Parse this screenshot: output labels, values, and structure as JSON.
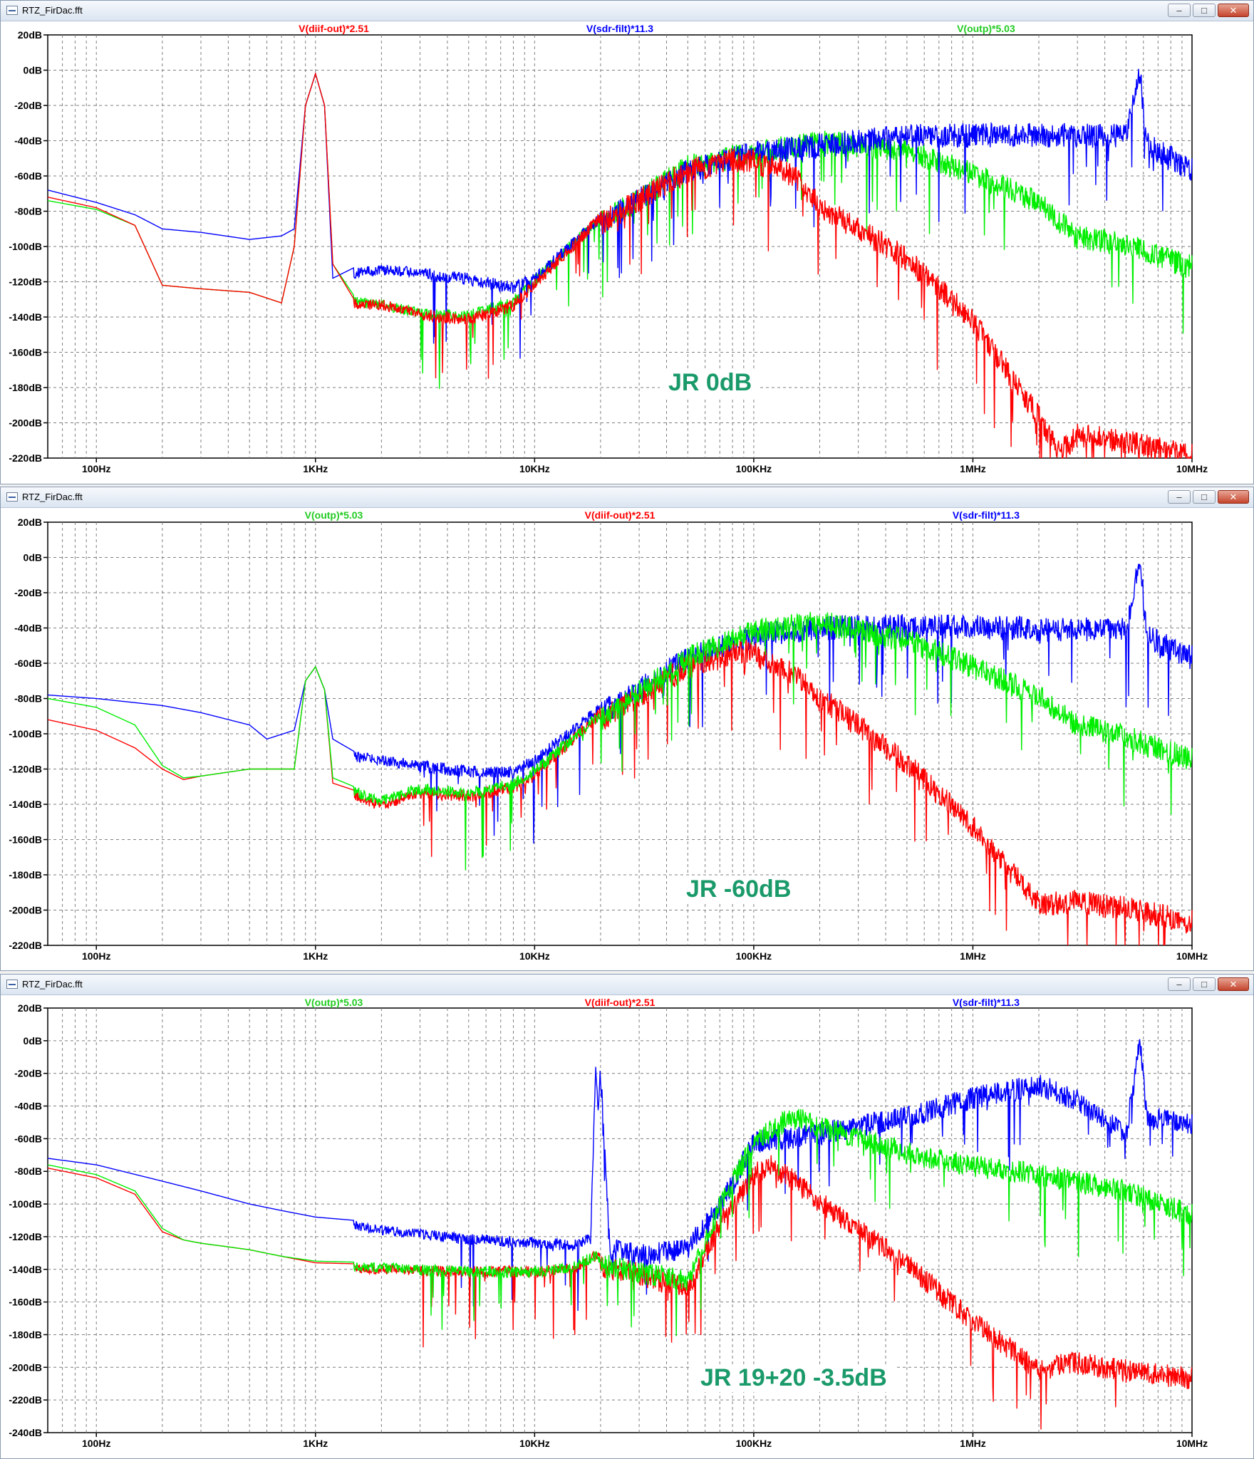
{
  "window_title": "RTZ_FirDac.fft",
  "window_buttons": {
    "minimize": "–",
    "maximize": "□",
    "close": "✕"
  },
  "panels": [
    {
      "title": "RTZ_FirDac.fft",
      "annotation": "JR 0dB",
      "legend_order": [
        "V(diif-out)*2.51",
        "V(sdr-filt)*11.3",
        "V(outp)*5.03"
      ]
    },
    {
      "title": "RTZ_FirDac.fft",
      "annotation": "JR -60dB",
      "legend_order": [
        "V(outp)*5.03",
        "V(diif-out)*2.51",
        "V(sdr-filt)*11.3"
      ]
    },
    {
      "title": "RTZ_FirDac.fft",
      "annotation": "JR 19+20 -3.5dB",
      "legend_order": [
        "V(outp)*5.03",
        "V(diif-out)*2.51",
        "V(sdr-filt)*11.3"
      ]
    }
  ],
  "chart_data": [
    {
      "type": "line",
      "title": "",
      "x_scale": "log",
      "xlim": [
        60,
        10000000
      ],
      "ylim": [
        -220,
        20
      ],
      "x_ticks": [
        100,
        1000,
        10000,
        100000,
        1000000,
        10000000
      ],
      "x_tick_labels": [
        "100Hz",
        "1KHz",
        "10KHz",
        "100KHz",
        "1MHz",
        "10MHz"
      ],
      "y_ticks": [
        20,
        0,
        -20,
        -40,
        -60,
        -80,
        -100,
        -120,
        -140,
        -160,
        -180,
        -200,
        -220
      ],
      "y_tick_labels": [
        "20dB",
        "0dB",
        "-20dB",
        "-40dB",
        "-60dB",
        "-80dB",
        "-100dB",
        "-120dB",
        "-140dB",
        "-160dB",
        "-180dB",
        "-200dB",
        "-220dB"
      ],
      "grid": true,
      "series": [
        {
          "name": "V(diif-out)*2.51",
          "color": "#ff0000",
          "x": [
            60,
            100,
            150,
            200,
            300,
            500,
            700,
            800,
            900,
            1000,
            1100,
            1200,
            1500,
            2000,
            3000,
            5000,
            8000,
            10000,
            20000,
            50000,
            80000,
            100000,
            150000,
            200000,
            500000,
            1000000,
            2000000,
            2500000,
            3000000,
            5000000,
            10000000
          ],
          "y": [
            -72,
            -78,
            -88,
            -122,
            -124,
            -126,
            -132,
            -100,
            -20,
            -2,
            -20,
            -110,
            -130,
            -130,
            -135,
            -138,
            -130,
            -118,
            -80,
            -50,
            -44,
            -45,
            -52,
            -70,
            -100,
            -135,
            -190,
            -210,
            -200,
            -204,
            -212
          ]
        },
        {
          "name": "V(sdr-filt)*11.3",
          "color": "#0000ff",
          "x": [
            60,
            100,
            150,
            200,
            300,
            500,
            700,
            800,
            900,
            1000,
            1100,
            1200,
            1500,
            2000,
            3000,
            5000,
            8000,
            10000,
            20000,
            50000,
            100000,
            200000,
            500000,
            1000000,
            2000000,
            5000000,
            5800000,
            6200000,
            10000000
          ],
          "y": [
            -68,
            -75,
            -82,
            -90,
            -92,
            -96,
            -94,
            -90,
            -20,
            -2,
            -20,
            -118,
            -112,
            -110,
            -112,
            -115,
            -120,
            -115,
            -80,
            -50,
            -40,
            -36,
            -30,
            -30,
            -30,
            -30,
            5,
            -35,
            -50
          ]
        },
        {
          "name": "V(outp)*5.03",
          "color": "#00ee00",
          "x": [
            60,
            100,
            150,
            200,
            300,
            500,
            700,
            800,
            900,
            1000,
            1100,
            1200,
            1500,
            2000,
            3000,
            5000,
            8000,
            10000,
            20000,
            50000,
            100000,
            200000,
            500000,
            1000000,
            2000000,
            3000000,
            5000000,
            10000000
          ],
          "y": [
            -74,
            -79,
            -88,
            -122,
            -124,
            -126,
            -132,
            -100,
            -20,
            -2,
            -20,
            -110,
            -128,
            -130,
            -135,
            -136,
            -128,
            -116,
            -80,
            -48,
            -40,
            -34,
            -38,
            -52,
            -68,
            -88,
            -92,
            -105
          ]
        }
      ]
    },
    {
      "type": "line",
      "title": "",
      "x_scale": "log",
      "xlim": [
        60,
        10000000
      ],
      "ylim": [
        -220,
        20
      ],
      "x_ticks": [
        100,
        1000,
        10000,
        100000,
        1000000,
        10000000
      ],
      "x_tick_labels": [
        "100Hz",
        "1KHz",
        "10KHz",
        "100KHz",
        "1MHz",
        "10MHz"
      ],
      "y_ticks": [
        20,
        0,
        -20,
        -40,
        -60,
        -80,
        -100,
        -120,
        -140,
        -160,
        -180,
        -200,
        -220
      ],
      "y_tick_labels": [
        "20dB",
        "0dB",
        "-20dB",
        "-40dB",
        "-60dB",
        "-80dB",
        "-100dB",
        "-120dB",
        "-140dB",
        "-160dB",
        "-180dB",
        "-200dB",
        "-220dB"
      ],
      "grid": true,
      "series": [
        {
          "name": "V(outp)*5.03",
          "color": "#00ee00",
          "x": [
            60,
            100,
            150,
            200,
            250,
            300,
            500,
            800,
            900,
            1000,
            1100,
            1200,
            1500,
            2000,
            3000,
            5000,
            8000,
            10000,
            20000,
            50000,
            100000,
            200000,
            500000,
            1000000,
            2000000,
            3000000,
            5000000,
            10000000
          ],
          "y": [
            -80,
            -85,
            -95,
            -118,
            -125,
            -124,
            -120,
            -120,
            -70,
            -62,
            -75,
            -125,
            -130,
            -135,
            -128,
            -130,
            -125,
            -118,
            -85,
            -50,
            -35,
            -30,
            -40,
            -55,
            -72,
            -88,
            -95,
            -108
          ]
        },
        {
          "name": "V(diif-out)*2.51",
          "color": "#ff0000",
          "x": [
            60,
            100,
            150,
            200,
            250,
            300,
            500,
            800,
            900,
            1000,
            1100,
            1200,
            1500,
            2000,
            3000,
            5000,
            8000,
            10000,
            20000,
            50000,
            90000,
            100000,
            150000,
            200000,
            500000,
            1000000,
            2000000,
            2800000,
            5000000,
            10000000
          ],
          "y": [
            -92,
            -98,
            -108,
            -120,
            -126,
            -124,
            -120,
            -120,
            -70,
            -62,
            -75,
            -128,
            -132,
            -138,
            -130,
            -132,
            -127,
            -120,
            -85,
            -55,
            -46,
            -48,
            -58,
            -72,
            -110,
            -145,
            -190,
            -188,
            -192,
            -200
          ]
        },
        {
          "name": "V(sdr-filt)*11.3",
          "color": "#0000ff",
          "x": [
            60,
            100,
            200,
            300,
            500,
            600,
            800,
            900,
            1000,
            1100,
            1200,
            1500,
            2000,
            3000,
            5000,
            8000,
            10000,
            20000,
            50000,
            100000,
            200000,
            500000,
            1000000,
            2000000,
            5000000,
            5800000,
            6200000,
            10000000
          ],
          "y": [
            -78,
            -80,
            -84,
            -88,
            -95,
            -103,
            -98,
            -70,
            -62,
            -75,
            -103,
            -110,
            -112,
            -115,
            -118,
            -118,
            -112,
            -82,
            -50,
            -38,
            -33,
            -32,
            -32,
            -34,
            -34,
            7,
            -38,
            -50
          ]
        }
      ]
    },
    {
      "type": "line",
      "title": "",
      "x_scale": "log",
      "xlim": [
        60,
        10000000
      ],
      "ylim": [
        -240,
        20
      ],
      "x_ticks": [
        100,
        1000,
        10000,
        100000,
        1000000,
        10000000
      ],
      "x_tick_labels": [
        "100Hz",
        "1KHz",
        "10KHz",
        "100KHz",
        "1MHz",
        "10MHz"
      ],
      "y_ticks": [
        20,
        0,
        -20,
        -40,
        -60,
        -80,
        -100,
        -120,
        -140,
        -160,
        -180,
        -200,
        -220,
        -240
      ],
      "y_tick_labels": [
        "20dB",
        "0dB",
        "-20dB",
        "-40dB",
        "-60dB",
        "-80dB",
        "-100dB",
        "-120dB",
        "-140dB",
        "-160dB",
        "-180dB",
        "-200dB",
        "-220dB",
        "-240dB"
      ],
      "grid": true,
      "series": [
        {
          "name": "V(outp)*5.03",
          "color": "#00ee00",
          "x": [
            60,
            100,
            150,
            200,
            250,
            300,
            500,
            700,
            1000,
            2000,
            5000,
            10000,
            15000,
            19000,
            20000,
            30000,
            50000,
            70000,
            100000,
            150000,
            200000,
            500000,
            1000000,
            2000000,
            5000000,
            10000000
          ],
          "y": [
            -76,
            -82,
            -92,
            -115,
            -122,
            -124,
            -128,
            -132,
            -135,
            -136,
            -138,
            -138,
            -135,
            -128,
            -130,
            -135,
            -140,
            -95,
            -55,
            -40,
            -45,
            -62,
            -70,
            -75,
            -85,
            -100
          ]
        },
        {
          "name": "V(diif-out)*2.51",
          "color": "#ff0000",
          "x": [
            60,
            100,
            150,
            200,
            250,
            300,
            500,
            700,
            1000,
            2000,
            5000,
            10000,
            15000,
            19000,
            20000,
            30000,
            50000,
            70000,
            100000,
            120000,
            150000,
            200000,
            500000,
            1000000,
            2000000,
            2800000,
            5000000,
            10000000
          ],
          "y": [
            -78,
            -84,
            -94,
            -117,
            -122,
            -124,
            -128,
            -132,
            -136,
            -137,
            -138,
            -138,
            -136,
            -128,
            -131,
            -136,
            -145,
            -105,
            -75,
            -70,
            -78,
            -92,
            -130,
            -165,
            -195,
            -190,
            -195,
            -200
          ]
        },
        {
          "name": "V(sdr-filt)*11.3",
          "color": "#0000ff",
          "x": [
            60,
            100,
            200,
            300,
            500,
            700,
            1000,
            1500,
            2000,
            5000,
            10000,
            15000,
            18000,
            19000,
            19500,
            20000,
            20500,
            22000,
            30000,
            50000,
            70000,
            100000,
            200000,
            500000,
            1000000,
            2000000,
            3000000,
            5000000,
            5800000,
            6200000,
            10000000
          ],
          "y": [
            -72,
            -76,
            -86,
            -92,
            -100,
            -104,
            -108,
            -110,
            -113,
            -118,
            -120,
            -122,
            -118,
            -12,
            -40,
            -12,
            -40,
            -120,
            -125,
            -120,
            -95,
            -55,
            -50,
            -40,
            -28,
            -20,
            -30,
            -50,
            7,
            -40,
            -45
          ]
        }
      ]
    }
  ]
}
